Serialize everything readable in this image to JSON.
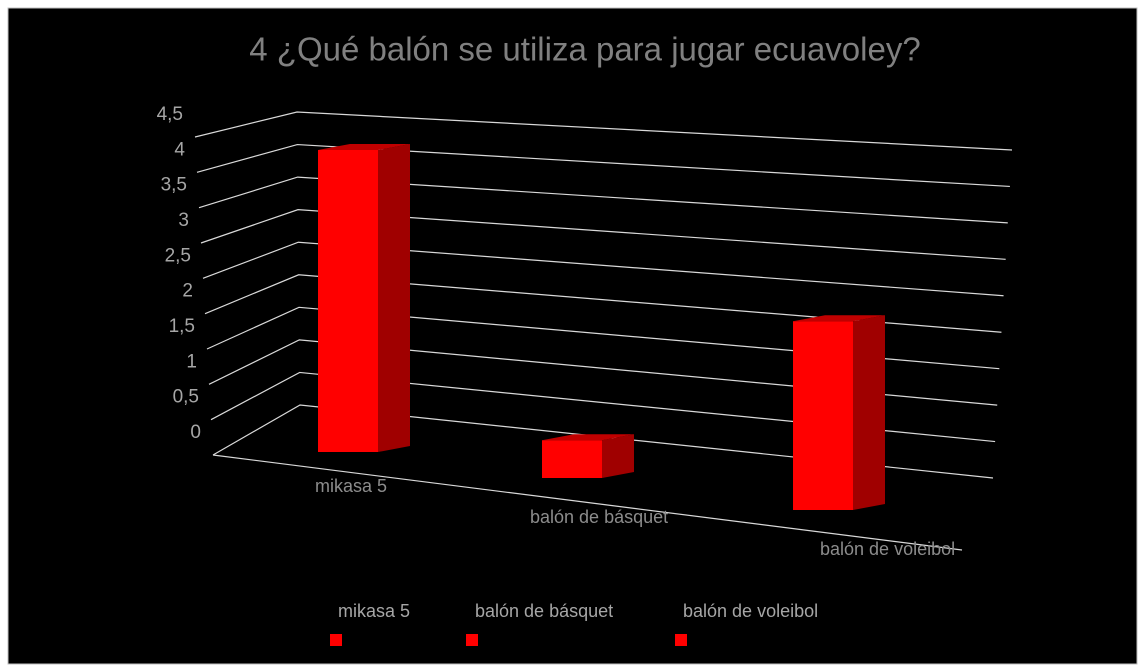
{
  "chart_data": {
    "type": "bar3d",
    "title": "4 ¿Qué balón se utiliza para jugar ecuavoley?",
    "categories": [
      "mikasa 5",
      "balón de básquet",
      "balón de voleibol"
    ],
    "values": [
      4,
      0.5,
      2.5
    ],
    "color": "#ff0000",
    "ylim": [
      0,
      4.5
    ],
    "yticks": [
      0,
      {
        "value": 0.5,
        "label": "0,5"
      },
      1,
      {
        "value": 1.5,
        "label": "1,5"
      },
      2,
      {
        "value": 2.5,
        "label": "2,5"
      },
      3,
      {
        "value": 3.5,
        "label": "3,5"
      },
      4,
      {
        "value": 4.5,
        "label": "4,5"
      }
    ],
    "grid": true,
    "legend": "bottom"
  }
}
